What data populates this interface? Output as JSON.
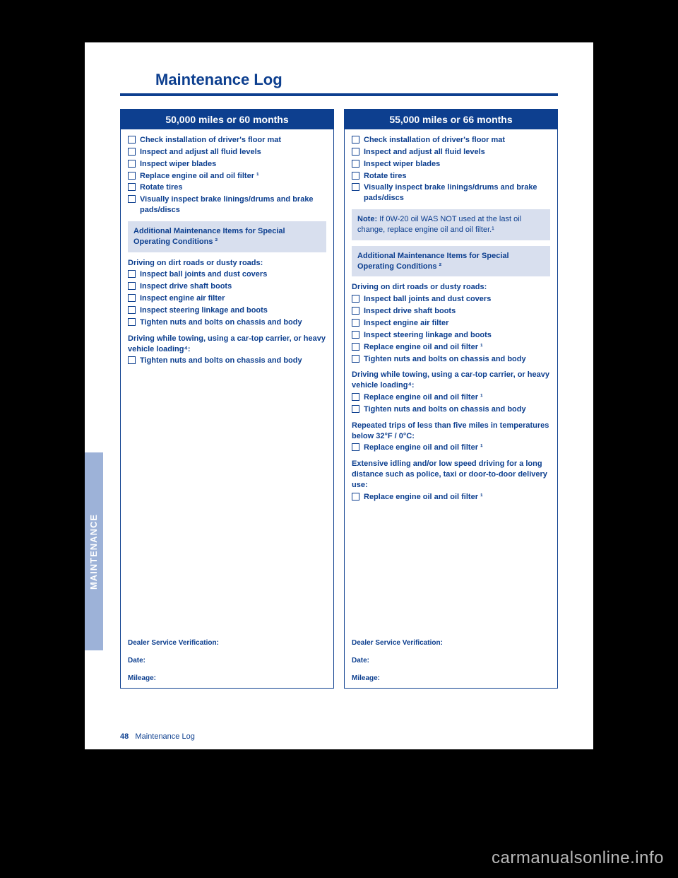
{
  "document": {
    "title": "Maintenance Log",
    "page_label_num": "48",
    "page_label_text": "Maintenance Log",
    "side_tab": "MAINTENANCE",
    "watermark": "carmanualsonline.info"
  },
  "colors": {
    "brand": "#0d3f8f",
    "box_bg": "#d8dfee",
    "tab_bg": "#9db2d8",
    "page_bg": "#ffffff",
    "outer_bg": "#000000",
    "watermark": "#b8b8b8"
  },
  "left": {
    "title": "50,000 miles or 60 months",
    "checks": [
      "Check installation of driver's floor mat",
      "Inspect and adjust all fluid levels",
      "Inspect wiper blades",
      "Replace engine oil and oil filter ¹",
      "Rotate tires",
      "Visually inspect brake linings/drums and brake pads/discs"
    ],
    "add_box": "Additional Maintenance Items for Special Operating Conditions ²",
    "sections": [
      {
        "header": "Driving on dirt roads or dusty roads:",
        "items": [
          "Inspect ball joints and dust covers",
          "Inspect drive shaft boots",
          "Inspect engine air filter",
          "Inspect steering linkage and boots",
          "Tighten nuts and bolts on chassis and body"
        ]
      },
      {
        "header": "Driving while towing, using a car-top carrier, or heavy vehicle loading⁴:",
        "items": [
          "Tighten nuts and bolts on chassis and body"
        ]
      }
    ],
    "footer": {
      "dealer": "Dealer Service Verification:",
      "date": "Date:",
      "mileage": "Mileage:"
    }
  },
  "right": {
    "title": "55,000 miles or 66 months",
    "checks": [
      "Check installation of driver's floor mat",
      "Inspect and adjust all fluid levels",
      "Inspect wiper blades",
      "Rotate tires",
      "Visually inspect brake linings/drums and brake pads/discs"
    ],
    "note": {
      "label": "Note:",
      "text": " If 0W-20 oil WAS NOT used at the last oil change, replace engine oil and oil filter.¹"
    },
    "add_box": "Additional Maintenance Items for Special Operating Conditions ²",
    "sections": [
      {
        "header": "Driving on dirt roads or dusty roads:",
        "items": [
          "Inspect ball joints and dust covers",
          "Inspect drive shaft boots",
          "Inspect engine air filter",
          "Inspect steering linkage and boots",
          "Replace engine oil and oil filter ¹",
          "Tighten nuts and bolts on chassis and body"
        ]
      },
      {
        "header": "Driving while towing, using a car-top carrier, or heavy vehicle loading⁴:",
        "items": [
          "Replace engine oil and oil filter ¹",
          "Tighten nuts and bolts on chassis and body"
        ]
      },
      {
        "header": "Repeated trips of less than five miles in temperatures below 32°F / 0°C:",
        "items": [
          "Replace engine oil and oil filter ¹"
        ]
      },
      {
        "header": "Extensive idling and/or low speed driving for a long distance such as police, taxi or door-to-door delivery use:",
        "items": [
          "Replace engine oil and oil filter ¹"
        ]
      }
    ],
    "footer": {
      "dealer": "Dealer Service Verification:",
      "date": "Date:",
      "mileage": "Mileage:"
    }
  }
}
